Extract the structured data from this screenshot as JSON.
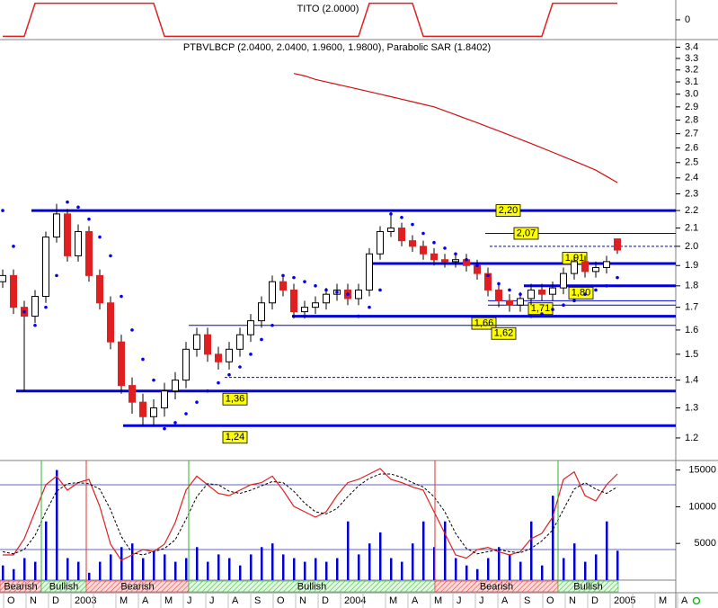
{
  "chart_data": {
    "type": "candlestick",
    "title": "PTBVLBCP (2.0400, 2.0400, 1.9600, 1.9800), Parabolic SAR (1.8402)",
    "log_scale": true,
    "ylim": [
      1.13,
      3.47
    ],
    "yticks": [
      1.2,
      1.3,
      1.4,
      1.5,
      1.6,
      1.7,
      1.8,
      1.9,
      {
        "value": 2,
        "label": "2.0"
      },
      2.1,
      2.2,
      2.3,
      2.4,
      2.5,
      2.6,
      2.7,
      2.8,
      2.9,
      {
        "value": 3,
        "label": "3.0"
      },
      3.1,
      3.2,
      3.3,
      3.4
    ],
    "up_color": "#ffffff",
    "down_color": "#e02020",
    "open": [
      1.82,
      1.85,
      1.7,
      1.66,
      1.75,
      2.05,
      2.18,
      1.95,
      2.08,
      1.85,
      1.72,
      1.55,
      1.38,
      1.32,
      1.27,
      1.3,
      1.36,
      1.4,
      1.52,
      1.58,
      1.5,
      1.47,
      1.52,
      1.58,
      1.64,
      1.72,
      1.82,
      1.78,
      1.68,
      1.7,
      1.72,
      1.76,
      1.78,
      1.74,
      1.78,
      1.96,
      2.08,
      2.1,
      2.03,
      2.0,
      1.96,
      1.93,
      1.92,
      1.93,
      1.9,
      1.86,
      1.78,
      1.73,
      1.71,
      1.74,
      1.78,
      1.76,
      1.79,
      1.86,
      1.92,
      1.87,
      1.89,
      2.04
    ],
    "high": [
      1.88,
      1.88,
      1.73,
      1.78,
      2.08,
      2.24,
      2.21,
      2.12,
      2.11,
      1.88,
      1.75,
      1.58,
      1.41,
      1.35,
      1.33,
      1.39,
      1.43,
      1.55,
      1.61,
      1.61,
      1.53,
      1.55,
      1.61,
      1.67,
      1.75,
      1.85,
      1.85,
      1.81,
      1.73,
      1.75,
      1.79,
      1.81,
      1.81,
      1.81,
      1.99,
      2.11,
      2.19,
      2.13,
      2.06,
      2.03,
      1.99,
      1.96,
      1.96,
      1.96,
      1.93,
      1.89,
      1.81,
      1.76,
      1.77,
      1.81,
      1.81,
      1.82,
      1.89,
      1.95,
      1.95,
      1.92,
      1.95,
      2.04
    ],
    "low": [
      1.79,
      1.67,
      1.36,
      1.63,
      1.72,
      2.02,
      1.92,
      1.92,
      1.82,
      1.69,
      1.52,
      1.35,
      1.28,
      1.24,
      1.24,
      1.27,
      1.33,
      1.37,
      1.49,
      1.47,
      1.44,
      1.44,
      1.49,
      1.55,
      1.61,
      1.69,
      1.75,
      1.65,
      1.65,
      1.67,
      1.69,
      1.73,
      1.71,
      1.71,
      1.75,
      1.93,
      2.05,
      2.0,
      1.97,
      1.93,
      1.9,
      1.89,
      1.89,
      1.87,
      1.83,
      1.75,
      1.7,
      1.68,
      1.68,
      1.71,
      1.73,
      1.73,
      1.76,
      1.83,
      1.84,
      1.84,
      1.86,
      1.96
    ],
    "close": [
      1.85,
      1.7,
      1.66,
      1.75,
      2.05,
      2.18,
      1.95,
      2.08,
      1.85,
      1.72,
      1.55,
      1.38,
      1.32,
      1.27,
      1.3,
      1.36,
      1.4,
      1.52,
      1.58,
      1.5,
      1.47,
      1.52,
      1.58,
      1.64,
      1.72,
      1.82,
      1.78,
      1.68,
      1.7,
      1.72,
      1.76,
      1.78,
      1.74,
      1.78,
      1.96,
      2.08,
      2.1,
      2.03,
      2.0,
      1.96,
      1.93,
      1.92,
      1.93,
      1.9,
      1.86,
      1.78,
      1.73,
      1.71,
      1.74,
      1.78,
      1.76,
      1.79,
      1.86,
      1.92,
      1.87,
      1.89,
      1.92,
      1.98
    ],
    "sar": {
      "color": "#0000ee",
      "values": [
        2.2,
        2.0,
        1.68,
        1.62,
        1.7,
        1.85,
        2.25,
        2.22,
        2.15,
        2.05,
        1.95,
        1.75,
        1.6,
        1.48,
        1.4,
        1.23,
        1.25,
        1.28,
        1.32,
        1.36,
        1.39,
        1.42,
        1.45,
        1.5,
        1.56,
        1.62,
        1.85,
        1.84,
        1.82,
        1.8,
        1.78,
        1.77,
        1.76,
        1.66,
        1.7,
        1.78,
        2.18,
        2.16,
        2.12,
        2.07,
        2.02,
        1.99,
        1.96,
        1.93,
        1.9,
        1.85,
        1.81,
        1.78,
        1.76,
        1.66,
        1.67,
        1.69,
        1.71,
        1.73,
        1.76,
        1.78,
        1.8,
        1.84
      ]
    },
    "ma": {
      "color": "#d01010",
      "values": [
        null,
        null,
        null,
        null,
        null,
        null,
        null,
        null,
        null,
        null,
        null,
        null,
        null,
        null,
        null,
        null,
        null,
        null,
        null,
        null,
        null,
        null,
        null,
        null,
        null,
        null,
        null,
        3.17,
        3.15,
        3.12,
        3.1,
        3.08,
        3.06,
        3.04,
        3.02,
        3.0,
        2.98,
        2.96,
        2.94,
        2.92,
        2.9,
        2.87,
        2.84,
        2.81,
        2.78,
        2.75,
        2.72,
        2.69,
        2.66,
        2.63,
        2.6,
        2.57,
        2.54,
        2.51,
        2.48,
        2.45,
        2.41,
        2.37
      ]
    },
    "level_color": "#0000dd",
    "levels": [
      {
        "value": 2.2,
        "label": "2,20",
        "style": "thick"
      },
      {
        "value": 2.07,
        "label": "2,07",
        "style": "thin"
      },
      {
        "value": 2.0,
        "style": "dashed"
      },
      {
        "value": 1.91,
        "label": "1,91",
        "style": "thick"
      },
      {
        "value": 1.8,
        "label": "1,80",
        "style": "thick"
      },
      {
        "value": 1.73,
        "style": "thin"
      },
      {
        "value": 1.71,
        "label": "1,71",
        "style": "thin"
      },
      {
        "value": 1.66,
        "label": "1,66",
        "style": "thick"
      },
      {
        "value": 1.62,
        "label": "1,62",
        "style": "thin"
      },
      {
        "value": 1.41,
        "style": "dashed"
      },
      {
        "value": 1.36,
        "label": "1,36",
        "style": "thick"
      },
      {
        "value": 1.24,
        "label": "1,24",
        "style": "thick"
      }
    ],
    "x_labels": [
      "O",
      "N",
      "D",
      "2003",
      null,
      "M",
      "A",
      "M",
      "J",
      "J",
      "A",
      "S",
      "O",
      "N",
      "D",
      "2004",
      null,
      "M",
      "A",
      "M",
      "J",
      "J",
      "A",
      "S",
      "O",
      "N",
      "D",
      "2005",
      null,
      "M",
      "A"
    ],
    "indicator": {
      "type": "line",
      "title": "TITO (2.0000)",
      "color": "#e02020",
      "ylim": [
        -1.2,
        1.2
      ],
      "yticks": [
        0
      ],
      "values": [
        -1,
        -1,
        -1,
        1,
        1,
        1,
        1,
        1,
        1,
        1,
        1,
        1,
        1,
        1,
        1,
        -1,
        -1,
        -1,
        -1,
        -1,
        -1,
        -1,
        -1,
        -1,
        -1,
        -1,
        -1,
        -1,
        -1,
        -1,
        -1,
        -1,
        -1,
        -1,
        1,
        1,
        1,
        1,
        1,
        -1,
        -1,
        -1,
        -1,
        -1,
        -1,
        -1,
        -1,
        -1,
        -1,
        -1,
        -1,
        1,
        1,
        1,
        1,
        1,
        1,
        1
      ]
    },
    "volume": {
      "type": "bar",
      "color": "#0000cc",
      "ylim": [
        0,
        16300
      ],
      "yticks": [
        5000,
        10000,
        15000
      ],
      "values": [
        2000,
        1500,
        3000,
        2500,
        8000,
        15000,
        3000,
        2500,
        1000,
        2500,
        3500,
        4500,
        5000,
        3000,
        4000,
        3500,
        2500,
        3000,
        4500,
        2500,
        3500,
        3000,
        2000,
        3500,
        4500,
        5000,
        3500,
        3000,
        2500,
        3000,
        2500,
        3000,
        8000,
        3500,
        5000,
        6500,
        3000,
        2500,
        5000,
        8000,
        4500,
        8000,
        3000,
        2000,
        1500,
        3000,
        4500,
        3500,
        2500,
        8000,
        2000,
        11500,
        3000,
        5000,
        2500,
        3500,
        8000,
        4000
      ]
    },
    "stochastic": {
      "ylim": [
        0,
        100
      ],
      "levels": [
        20,
        80
      ],
      "k": {
        "color": "#e02020",
        "values": [
          15,
          15,
          30,
          55,
          80,
          88,
          75,
          82,
          85,
          60,
          25,
          10,
          15,
          20,
          18,
          25,
          45,
          75,
          88,
          80,
          72,
          70,
          75,
          80,
          82,
          88,
          75,
          60,
          55,
          50,
          55,
          70,
          82,
          85,
          90,
          95,
          85,
          82,
          78,
          75,
          55,
          35,
          15,
          12,
          20,
          22,
          18,
          15,
          18,
          30,
          35,
          50,
          85,
          92,
          70,
          65,
          80,
          90
        ]
      },
      "d": {
        "color": "#000000",
        "values": [
          18,
          16,
          20,
          33,
          55,
          74,
          81,
          82,
          81,
          76,
          57,
          32,
          17,
          15,
          18,
          21,
          29,
          48,
          69,
          81,
          80,
          74,
          72,
          75,
          79,
          83,
          82,
          74,
          63,
          55,
          53,
          58,
          69,
          79,
          86,
          90,
          90,
          87,
          82,
          78,
          69,
          55,
          35,
          21,
          16,
          18,
          20,
          18,
          17,
          21,
          28,
          38,
          57,
          76,
          82,
          76,
          72,
          78
        ]
      }
    },
    "signals": [
      {
        "label": "Bearish",
        "color": "#e03030"
      },
      {
        "label": "Bullish",
        "color": "#30b030"
      },
      {
        "label": "Bearish",
        "color": "#e03030"
      },
      {
        "label": "Bullish",
        "color": "#30b030"
      },
      {
        "label": "Bearish",
        "color": "#e03030"
      },
      {
        "label": "Bullish",
        "color": "#30b030"
      }
    ]
  }
}
